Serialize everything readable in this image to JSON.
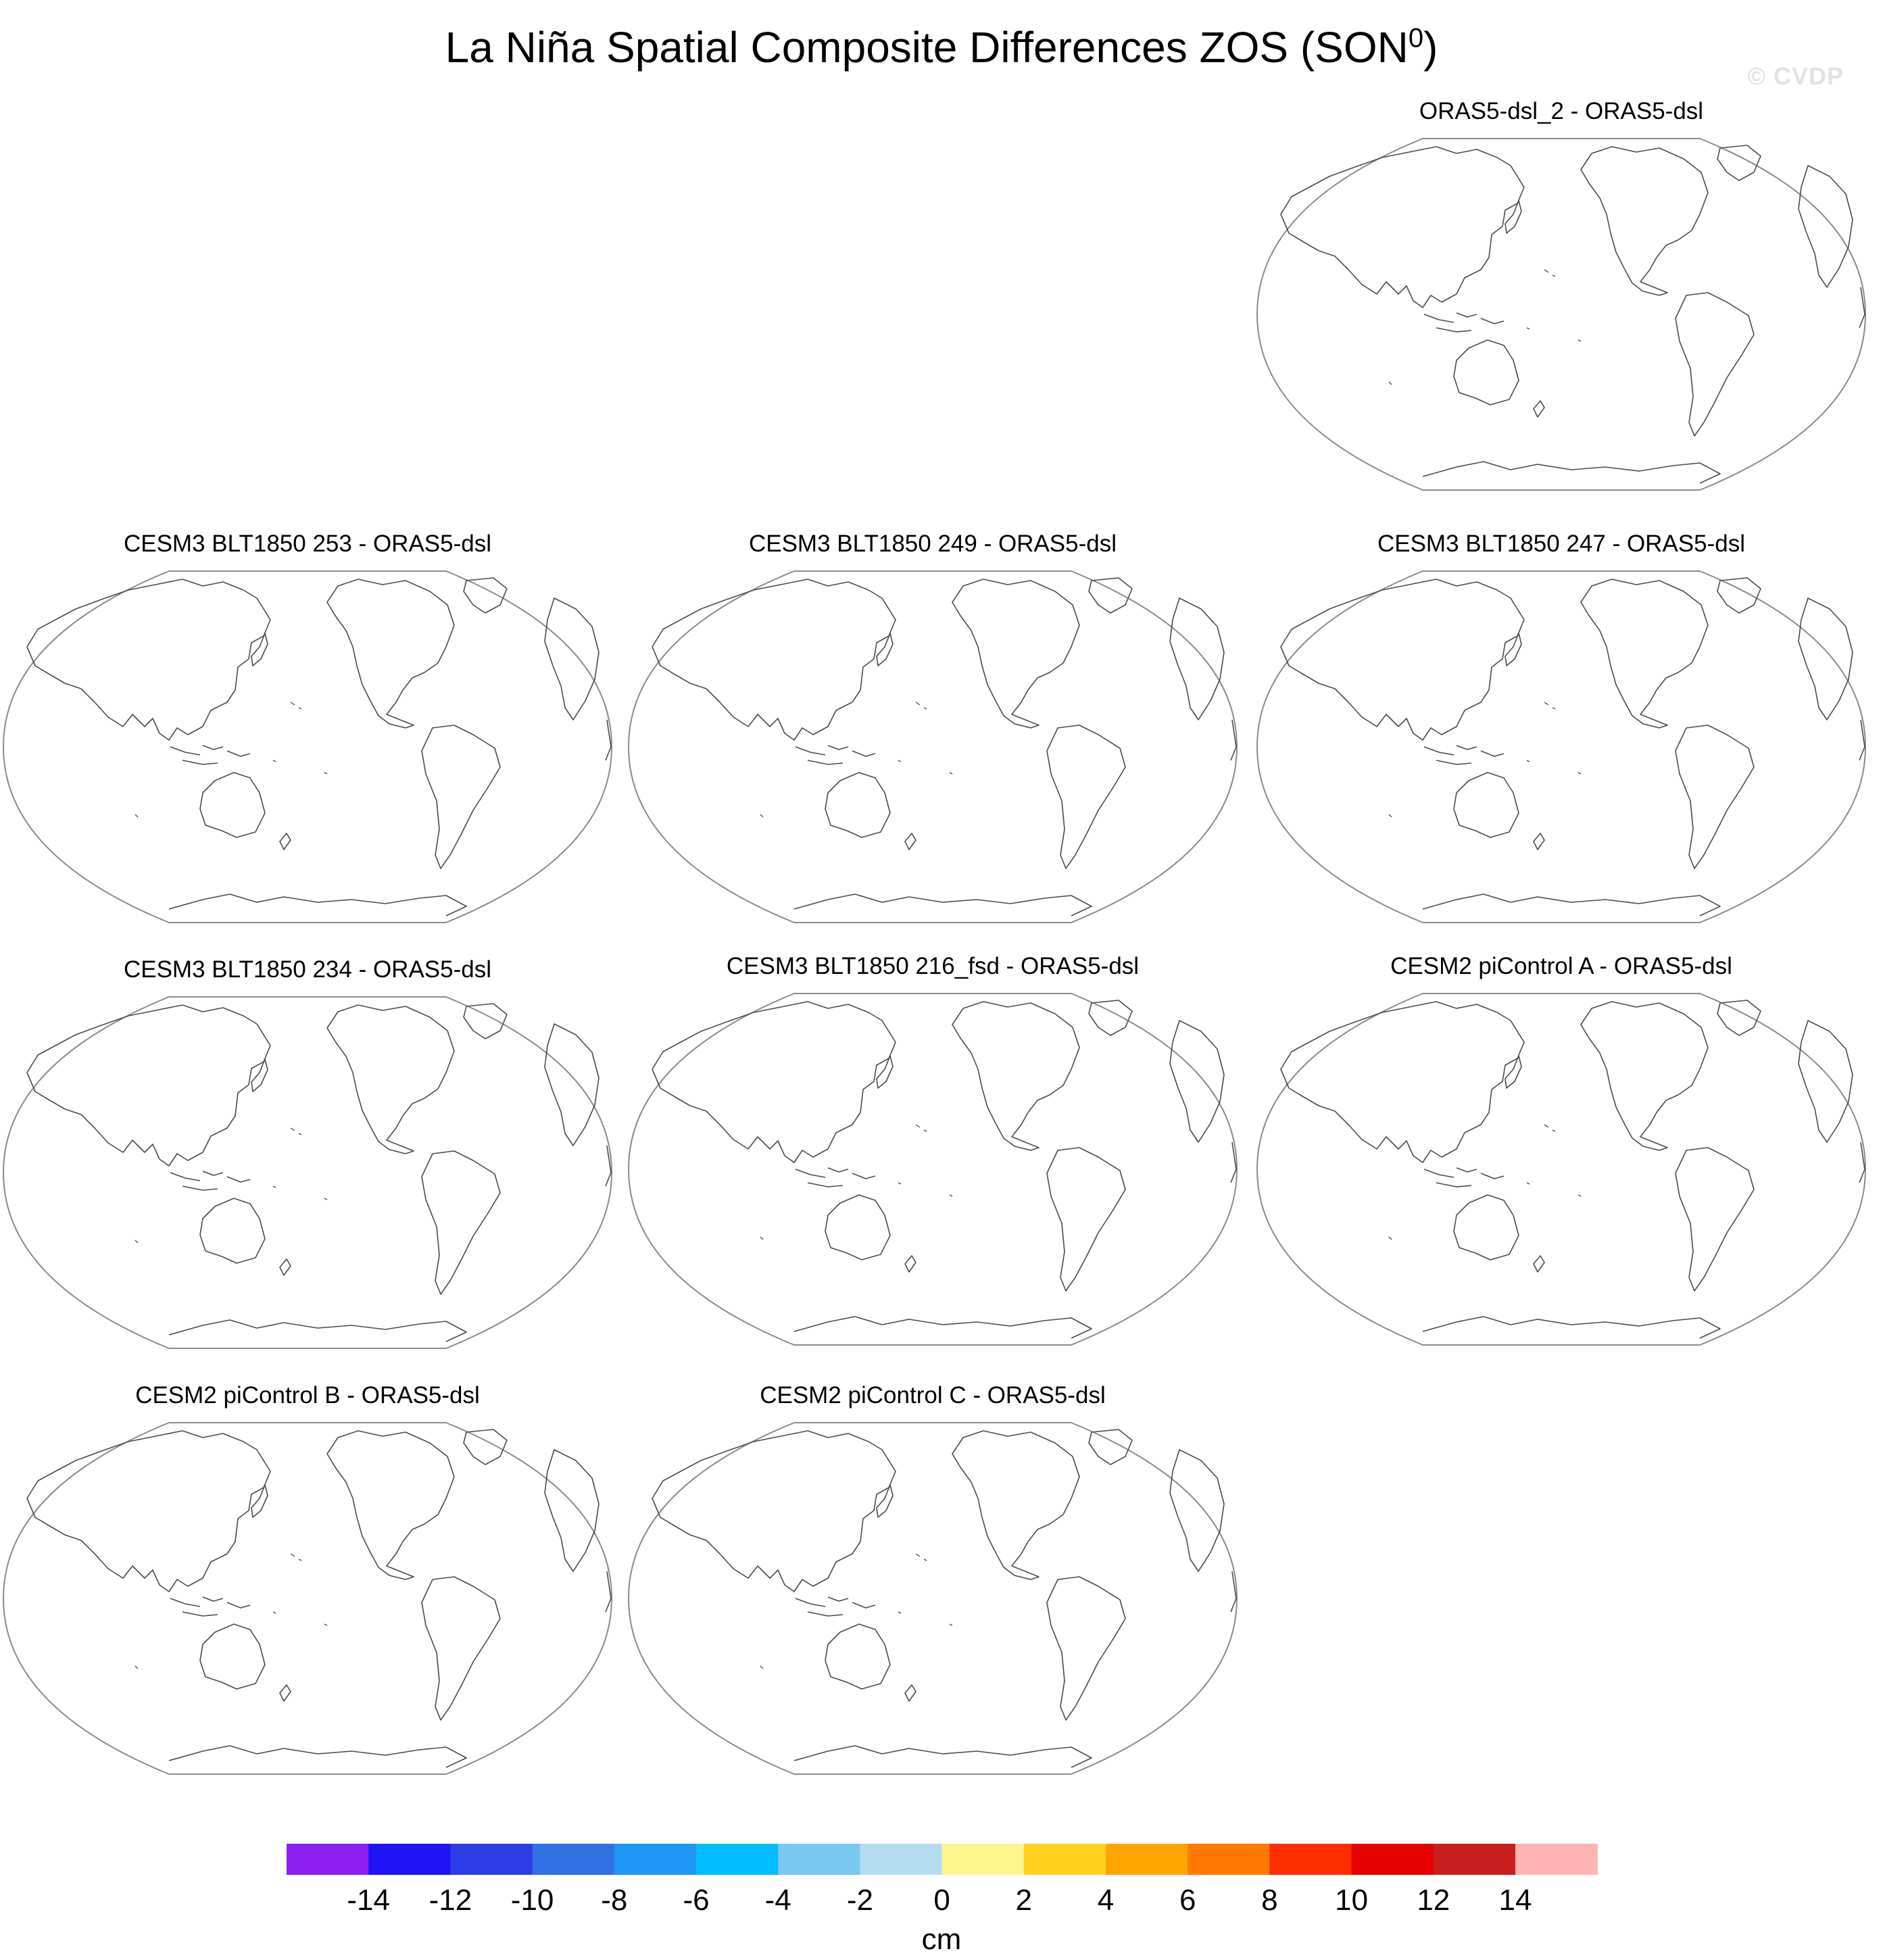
{
  "title": {
    "text": "La Niña Spatial Composite Differences ZOS (SON",
    "superscript": "0",
    "suffix": ")"
  },
  "watermark": "© CVDP",
  "panels": [
    {
      "title": "ORAS5-dsl_2 - ORAS5-dsl"
    },
    {
      "title": "CESM3 BLT1850 253 - ORAS5-dsl"
    },
    {
      "title": "CESM3 BLT1850 249 - ORAS5-dsl"
    },
    {
      "title": "CESM3 BLT1850 247 - ORAS5-dsl"
    },
    {
      "title": "CESM3 BLT1850 234 - ORAS5-dsl"
    },
    {
      "title": "CESM3 BLT1850 216_fsd - ORAS5-dsl"
    },
    {
      "title": "CESM2 piControl A - ORAS5-dsl"
    },
    {
      "title": "CESM2 piControl B - ORAS5-dsl"
    },
    {
      "title": "CESM2 piControl C - ORAS5-dsl"
    }
  ],
  "colorbar": {
    "units": "cm",
    "labels": [
      "-14",
      "-12",
      "-10",
      "-8",
      "-6",
      "-4",
      "-2",
      "0",
      "2",
      "4",
      "6",
      "8",
      "10",
      "12",
      "14"
    ],
    "colors": [
      "#8b1ef0",
      "#1e14f5",
      "#2d3ce6",
      "#3270e6",
      "#1e96f5",
      "#00beff",
      "#78c8f0",
      "#b4dcf0",
      "#fff58c",
      "#ffd21e",
      "#ffa500",
      "#ff7800",
      "#ff2d00",
      "#e60000",
      "#c81e1e",
      "#ffb4b4"
    ]
  }
}
